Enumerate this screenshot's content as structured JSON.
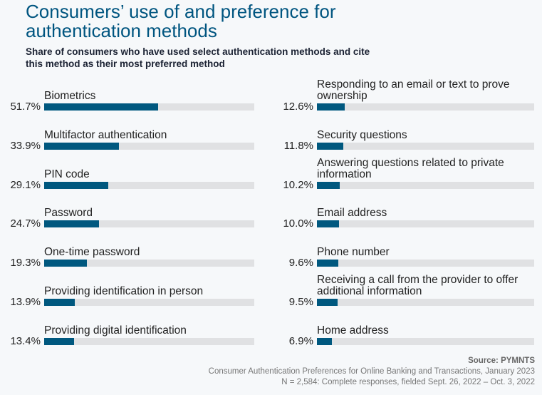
{
  "chart_data": {
    "type": "bar",
    "title": "Consumers’ use of and preference for authentication methods",
    "subtitle": "Share of consumers who have used select authentication methods and cite this method as their most preferred method",
    "unit": "%",
    "colors": {
      "bar": "#00587f",
      "track": "#e0e1e3",
      "title": "#005580"
    },
    "columns": [
      {
        "items": [
          {
            "label": "Biometrics",
            "value": 51.7,
            "display": "51.7%"
          },
          {
            "label": "Multifactor authentication",
            "value": 33.9,
            "display": "33.9%"
          },
          {
            "label": "PIN code",
            "value": 29.1,
            "display": "29.1%"
          },
          {
            "label": "Password",
            "value": 24.7,
            "display": "24.7%"
          },
          {
            "label": "One-time password",
            "value": 19.3,
            "display": "19.3%"
          },
          {
            "label": "Providing identification in person",
            "value": 13.9,
            "display": "13.9%"
          },
          {
            "label": "Providing digital identification",
            "value": 13.4,
            "display": "13.4%"
          }
        ]
      },
      {
        "items": [
          {
            "label": "Responding to an email or text to prove ownership",
            "value": 12.6,
            "display": "12.6%"
          },
          {
            "label": "Security questions",
            "value": 11.8,
            "display": "11.8%"
          },
          {
            "label": "Answering questions related to private information",
            "value": 10.2,
            "display": "10.2%"
          },
          {
            "label": "Email address",
            "value": 10.0,
            "display": "10.0%"
          },
          {
            "label": "Phone number",
            "value": 9.6,
            "display": "9.6%"
          },
          {
            "label": "Receiving a call from the provider to offer additional information",
            "value": 9.5,
            "display": "9.5%"
          },
          {
            "label": "Home address",
            "value": 6.9,
            "display": "6.9%"
          }
        ]
      }
    ]
  },
  "footer": {
    "source": "Source: PYMNTS",
    "report": "Consumer Authentication Preferences for Online Banking and Transactions, January 2023",
    "sample": "N = 2,584: Complete responses, fielded Sept. 26, 2022 – Oct. 3, 2022"
  }
}
